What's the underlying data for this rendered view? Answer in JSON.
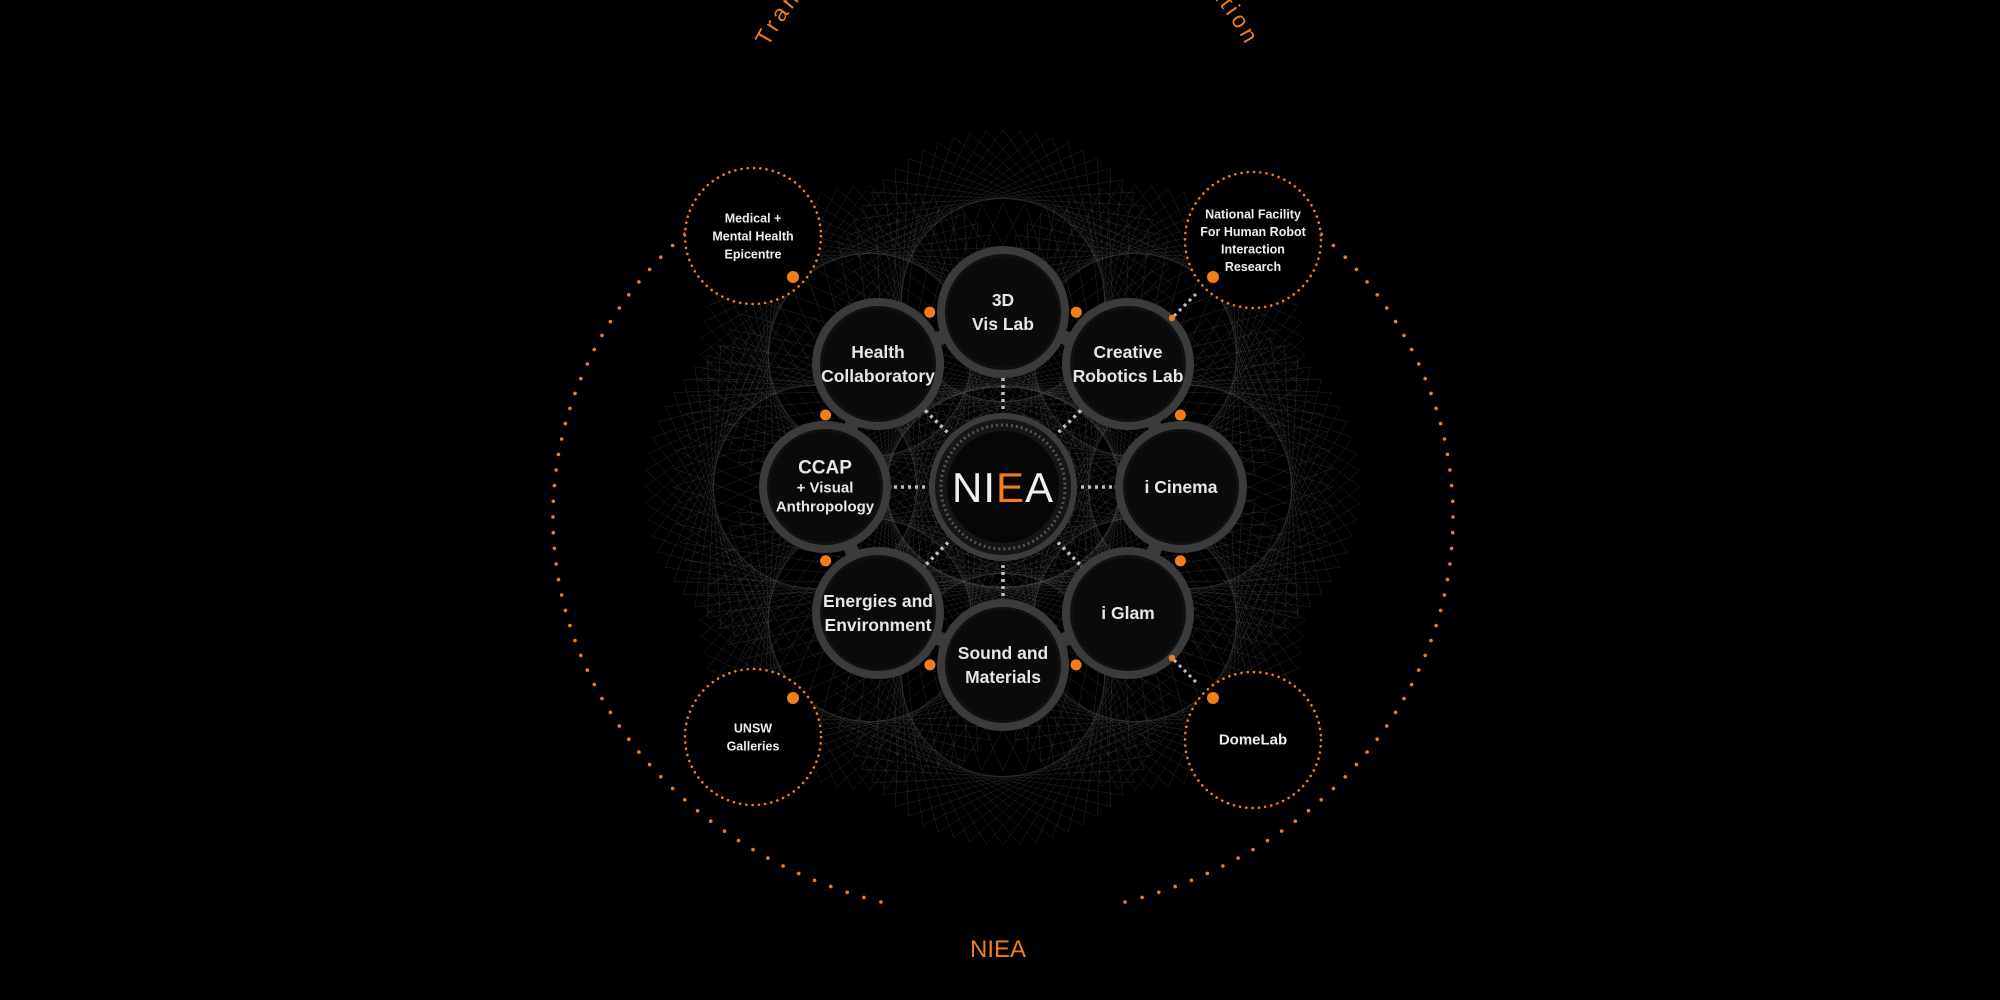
{
  "title": "Transdisciplinary  Art-Science  Collaboration",
  "footer_logo": "NIEA",
  "center": {
    "logo_left": "NI",
    "logo_accent": "E",
    "logo_right": "A"
  },
  "inner_nodes": [
    {
      "id": "vislab",
      "lines": [
        "3D",
        "Vis Lab"
      ]
    },
    {
      "id": "robotics",
      "lines": [
        "Creative",
        "Robotics Lab"
      ]
    },
    {
      "id": "icinema",
      "lines": [
        "i Cinema"
      ]
    },
    {
      "id": "iglam",
      "lines": [
        "i Glam"
      ]
    },
    {
      "id": "sound",
      "lines": [
        "Sound and",
        "Materials"
      ]
    },
    {
      "id": "energies",
      "lines": [
        "Energies and",
        "Environment"
      ]
    },
    {
      "id": "ccap",
      "lines": [
        "CCAP",
        "+ Visual",
        "Anthropology"
      ]
    },
    {
      "id": "health",
      "lines": [
        "Health",
        "Collaboratory"
      ]
    }
  ],
  "outer_nodes": [
    {
      "id": "medical",
      "lines": [
        "Medical +",
        "Mental Health",
        "Epicentre"
      ]
    },
    {
      "id": "hri",
      "lines": [
        "National Facility",
        "For Human Robot",
        "Interaction",
        "Research"
      ]
    },
    {
      "id": "galleries",
      "lines": [
        "UNSW",
        "Galleries"
      ]
    },
    {
      "id": "domelab",
      "lines": [
        "DomeLab"
      ]
    }
  ],
  "colors": {
    "background": "#000000",
    "accent": "#f07f1a",
    "node_fill": "#0b0b0b",
    "node_ring": "#3b3b3b",
    "text": "#e6e6e6",
    "mesh": "#6a6a6a"
  }
}
